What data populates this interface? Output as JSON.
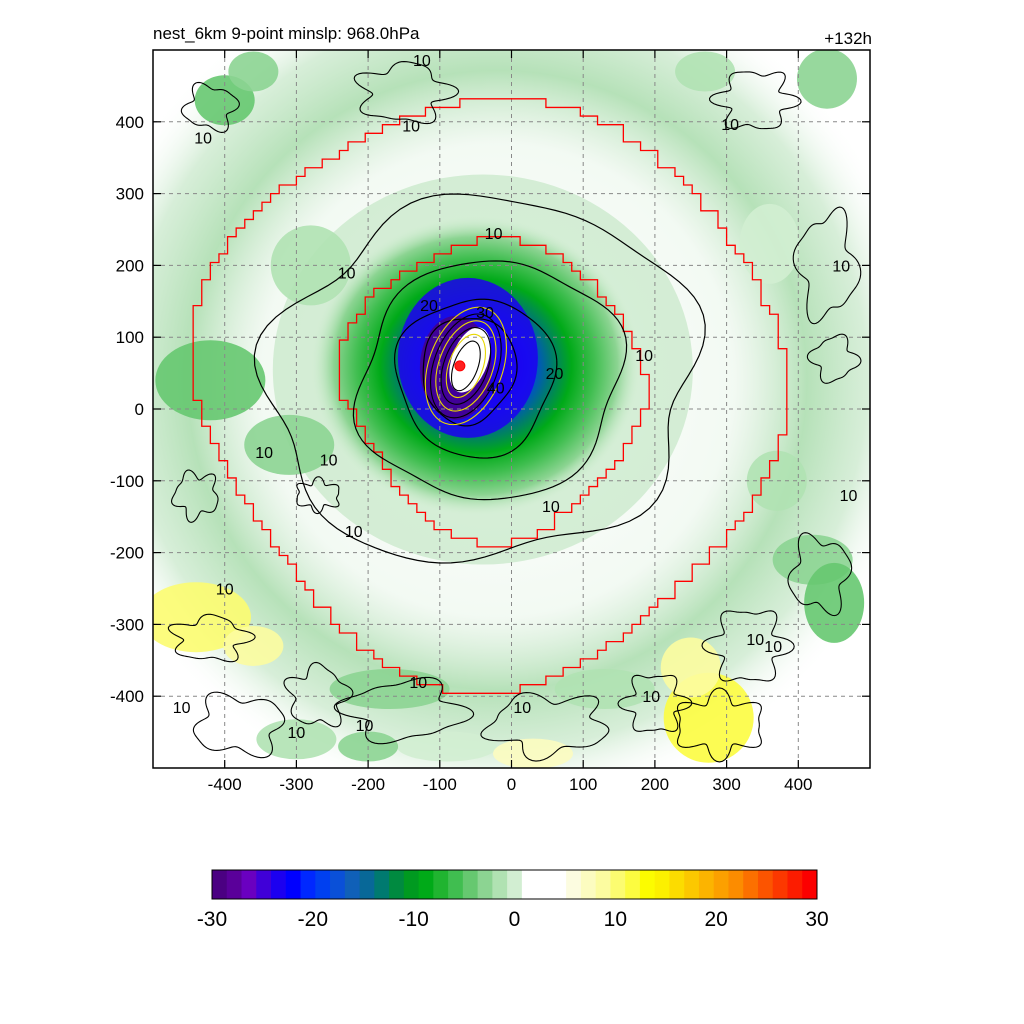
{
  "chart_data": {
    "type": "heatmap",
    "title_left": "nest_6km  9-point minslp: 968.0hPa",
    "title_right": "+132h",
    "xlim": [
      -500,
      500
    ],
    "ylim": [
      -500,
      500
    ],
    "x_ticks": [
      -400,
      -300,
      -200,
      -100,
      0,
      100,
      200,
      300,
      400
    ],
    "y_ticks": [
      -400,
      -300,
      -200,
      -100,
      0,
      100,
      200,
      300,
      400
    ],
    "x_tick_labels": [
      "-400",
      "-300",
      "-200",
      "-100",
      "0",
      "100",
      "200",
      "300",
      "400"
    ],
    "y_tick_labels": [
      "-400",
      "-300",
      "-200",
      "-100",
      "0",
      "100",
      "200",
      "300",
      "400"
    ],
    "grid": true,
    "storm_center": [
      -72,
      60
    ],
    "contour_levels": [
      10,
      20,
      30,
      40
    ],
    "contour_labels": [
      {
        "text": "10",
        "x": -125,
        "y": 486
      },
      {
        "text": "10",
        "x": -430,
        "y": 378
      },
      {
        "text": "10",
        "x": -140,
        "y": 395
      },
      {
        "text": "10",
        "x": 305,
        "y": 397
      },
      {
        "text": "10",
        "x": -25,
        "y": 245
      },
      {
        "text": "10",
        "x": -230,
        "y": 190
      },
      {
        "text": "10",
        "x": 460,
        "y": 200
      },
      {
        "text": "20",
        "x": -115,
        "y": 145
      },
      {
        "text": "30",
        "x": -37,
        "y": 135
      },
      {
        "text": "10",
        "x": 185,
        "y": 75
      },
      {
        "text": "20",
        "x": 60,
        "y": 50
      },
      {
        "text": "40",
        "x": -22,
        "y": 30
      },
      {
        "text": "10",
        "x": -345,
        "y": -60
      },
      {
        "text": "10",
        "x": -255,
        "y": -70
      },
      {
        "text": "10",
        "x": 55,
        "y": -135
      },
      {
        "text": "10",
        "x": -220,
        "y": -170
      },
      {
        "text": "10",
        "x": -400,
        "y": -250
      },
      {
        "text": "10",
        "x": 340,
        "y": -320
      },
      {
        "text": "10",
        "x": -130,
        "y": -380
      },
      {
        "text": "10",
        "x": 195,
        "y": -400
      },
      {
        "text": "10",
        "x": 15,
        "y": -415
      },
      {
        "text": "10",
        "x": -460,
        "y": -415
      },
      {
        "text": "10",
        "x": -300,
        "y": -450
      },
      {
        "text": "10",
        "x": -205,
        "y": -440
      },
      {
        "text": "10",
        "x": 365,
        "y": -330
      },
      {
        "text": "10",
        "x": 470,
        "y": -120
      }
    ],
    "colorbar": {
      "min": -30,
      "max": 30,
      "ticks": [
        -30,
        -20,
        -10,
        0,
        10,
        20,
        30
      ],
      "tick_labels": [
        "-30",
        "-20",
        "-10",
        "0",
        "10",
        "20",
        "30"
      ],
      "colors": [
        "#4b0082",
        "#5a009a",
        "#6a00c0",
        "#4000d8",
        "#1c00f0",
        "#0000ff",
        "#0028ff",
        "#0040f0",
        "#0a50d8",
        "#1060b8",
        "#086898",
        "#007a70",
        "#008a40",
        "#009a20",
        "#00aa18",
        "#20b430",
        "#40be50",
        "#66c870",
        "#8cd492",
        "#b0e2b2",
        "#d2eed2",
        "#ffffff",
        "#ffffff",
        "#ffffff",
        "#fcfce0",
        "#fcfcc0",
        "#fcfca0",
        "#fcfc70",
        "#fcfc40",
        "#fcfc00",
        "#fcf000",
        "#fcdc00",
        "#fcc800",
        "#fcb400",
        "#fca000",
        "#fc8c00",
        "#fc7000",
        "#fc5400",
        "#fc3800",
        "#fc1c00",
        "#fc0000"
      ]
    }
  }
}
